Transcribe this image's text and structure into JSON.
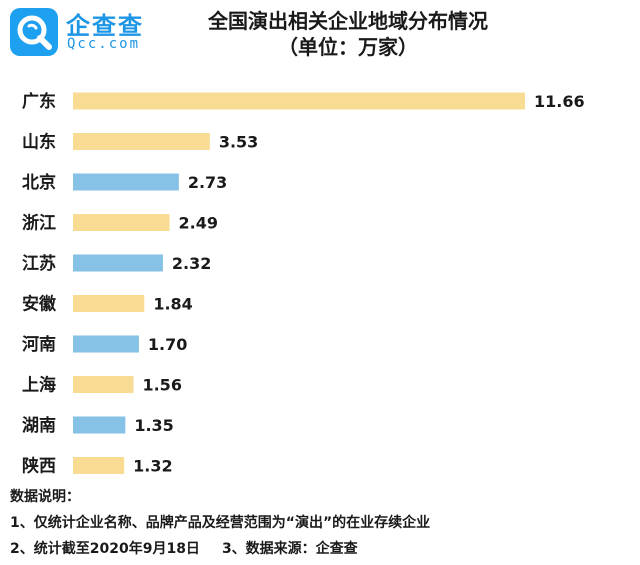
{
  "logo": {
    "name_cn": "企查查",
    "name_en": "Qcc.com"
  },
  "title": "全国演出相关企业地域分布情况",
  "subtitle": "（单位：万家）",
  "colors": {
    "yellow": "#f9dc93",
    "blue": "#85c2e6",
    "brand": "#1e96e6"
  },
  "chart_data": {
    "type": "bar",
    "orientation": "horizontal",
    "title": "全国演出相关企业地域分布情况",
    "unit": "（单位：万家）",
    "categories": [
      "广东",
      "山东",
      "北京",
      "浙江",
      "江苏",
      "安徽",
      "河南",
      "上海",
      "湖南",
      "陕西"
    ],
    "values": [
      11.66,
      3.53,
      2.73,
      2.49,
      2.32,
      1.84,
      1.7,
      1.56,
      1.35,
      1.32
    ],
    "value_labels": [
      "11.66",
      "3.53",
      "2.73",
      "2.49",
      "2.32",
      "1.84",
      "1.70",
      "1.56",
      "1.35",
      "1.32"
    ],
    "bar_colors": [
      "yellow",
      "yellow",
      "blue",
      "yellow",
      "blue",
      "yellow",
      "blue",
      "yellow",
      "blue",
      "yellow"
    ],
    "xlim": [
      0,
      11.66
    ],
    "grid": false,
    "legend": "none"
  },
  "notes": {
    "heading": "数据说明：",
    "line1": "1、仅统计企业名称、品牌产品及经营范围为“演出”的在业存续企业",
    "line2a": "2、统计截至2020年9月18日",
    "line2b": "3、数据来源：企查查"
  }
}
